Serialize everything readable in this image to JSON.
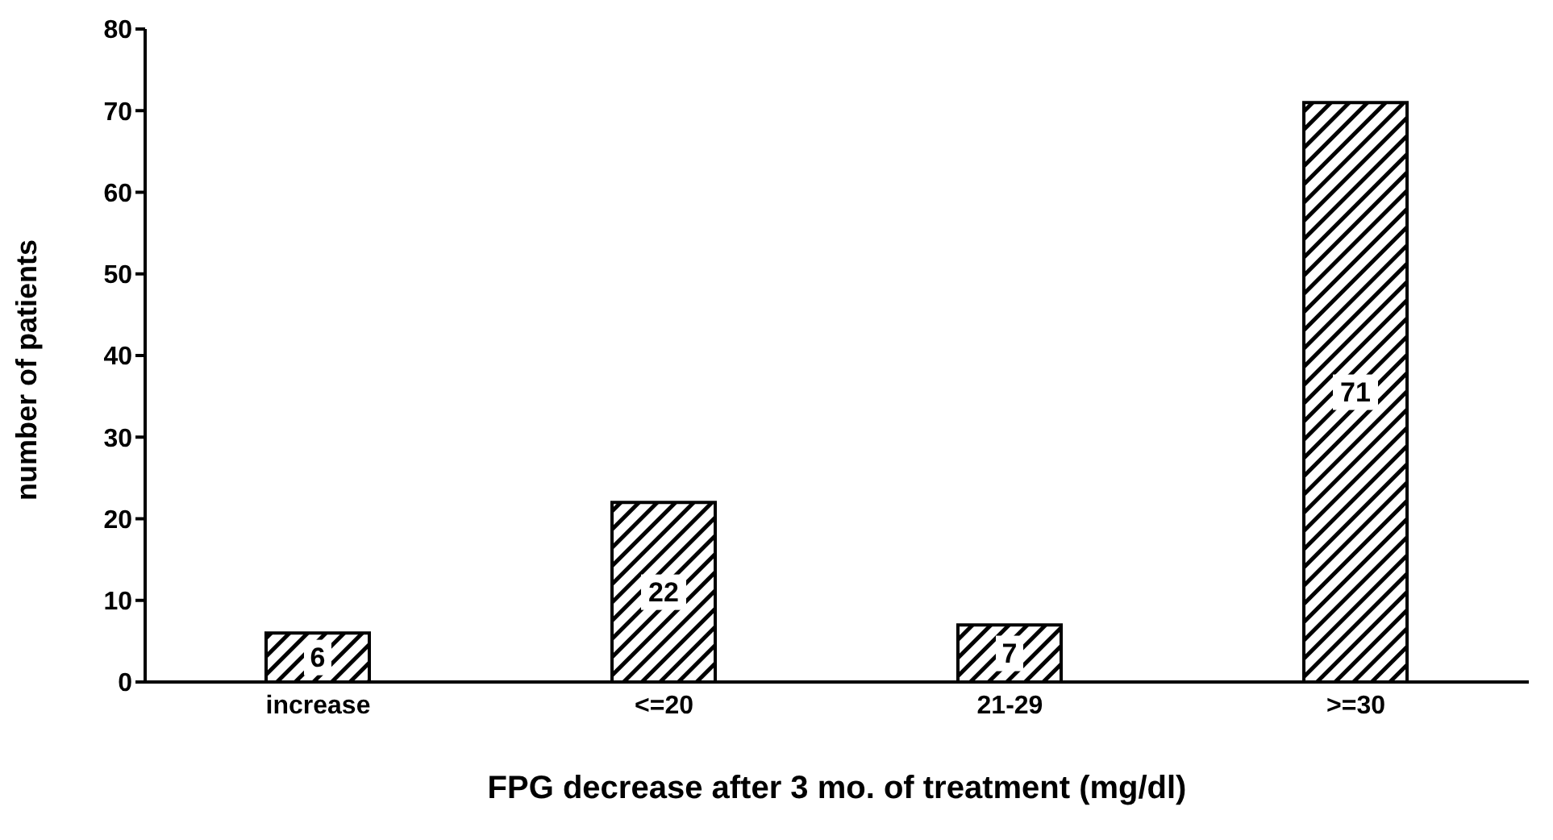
{
  "chart_data": {
    "type": "bar",
    "xlabel": "FPG decrease after 3 mo. of treatment (mg/dl)",
    "ylabel": "number of patients",
    "categories": [
      "increase",
      "<=20",
      "21-29",
      ">=30"
    ],
    "values": [
      6,
      22,
      7,
      71
    ],
    "color": "#000000",
    "ylim": [
      0,
      80
    ],
    "yticks": [
      0,
      10,
      20,
      30,
      40,
      50,
      60,
      70,
      80
    ],
    "grid": false,
    "legend": false,
    "data_labels": true
  }
}
